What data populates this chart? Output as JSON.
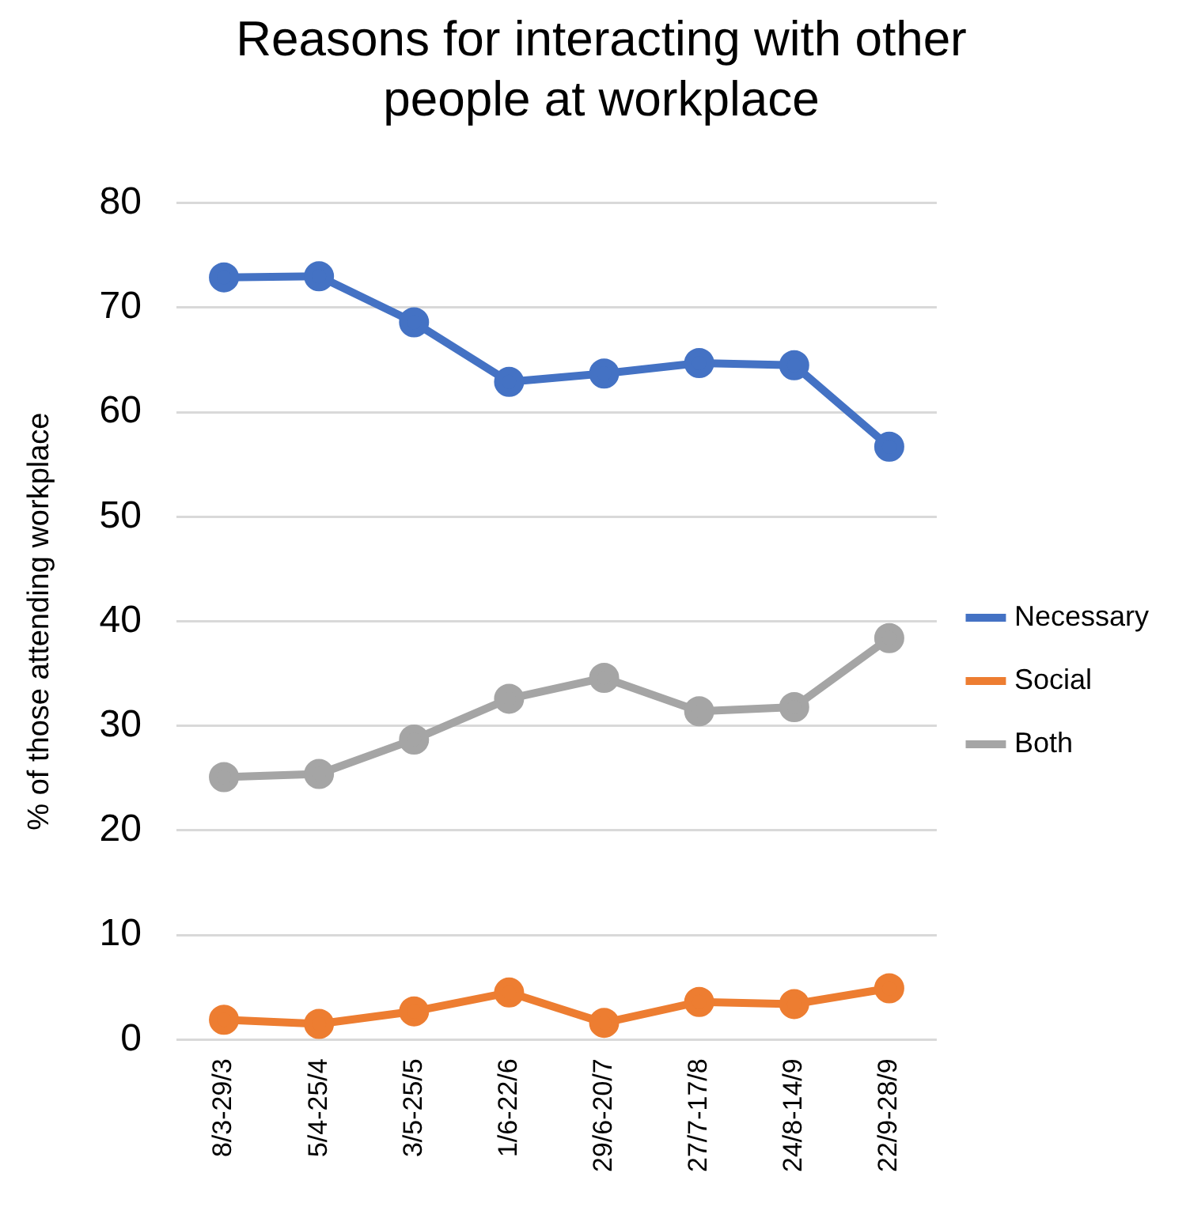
{
  "chart_data": {
    "type": "line",
    "title": "Reasons for interacting with other people at workplace",
    "ylabel": "% of those attending workplace",
    "categories": [
      "8/3-29/3",
      "5/4-25/4",
      "3/5-25/5",
      "1/6-22/6",
      "29/6-20/7",
      "27/7-17/8",
      "24/8-14/9",
      "22/9-28/9"
    ],
    "series": [
      {
        "name": "Necessary",
        "color": "#4472c4",
        "values": [
          72.9,
          73.0,
          68.6,
          62.9,
          63.7,
          64.7,
          64.5,
          56.7
        ]
      },
      {
        "name": "Social",
        "color": "#ed7d31",
        "values": [
          1.9,
          1.5,
          2.7,
          4.5,
          1.6,
          3.6,
          3.4,
          4.9
        ]
      },
      {
        "name": "Both",
        "color": "#a5a5a5",
        "values": [
          25.1,
          25.4,
          28.7,
          32.6,
          34.6,
          31.4,
          31.8,
          38.4
        ]
      }
    ],
    "ylim": [
      0,
      80
    ],
    "yticks": [
      0,
      10,
      20,
      30,
      40,
      50,
      60,
      70,
      80
    ],
    "grid": "y",
    "legend": "right",
    "marker": "circle",
    "line_style": "solid"
  }
}
